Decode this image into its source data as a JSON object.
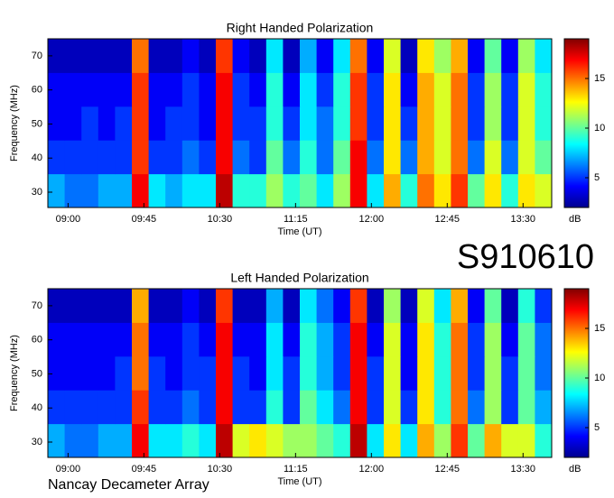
{
  "id": "S910610",
  "footer": "Nancay Decameter Array",
  "chart_data": [
    {
      "type": "heatmap",
      "title": "Right Handed Polarization",
      "xlabel": "Time (UT)",
      "ylabel": "Frequency (MHz)",
      "xlim": [
        528,
        827
      ],
      "xticks": [
        {
          "value": 540,
          "label": "09:00"
        },
        {
          "value": 585,
          "label": "09:45"
        },
        {
          "value": 630,
          "label": "10:30"
        },
        {
          "value": 675,
          "label": "11:15"
        },
        {
          "value": 720,
          "label": "12:00"
        },
        {
          "value": 765,
          "label": "12:45"
        },
        {
          "value": 810,
          "label": "13:30"
        }
      ],
      "ylim": [
        25.5,
        75
      ],
      "yticks": [
        30,
        40,
        50,
        60,
        70
      ],
      "zlim": [
        2,
        19
      ],
      "zticks": [
        5,
        10,
        15
      ],
      "zlabel": "dB",
      "z": [
        [
          7,
          6,
          6,
          7,
          7,
          17,
          8,
          7,
          8,
          8,
          18,
          9,
          9,
          11,
          9,
          10,
          8,
          11,
          17,
          8,
          14,
          9,
          15,
          13,
          16,
          10,
          13,
          9,
          13,
          12
        ],
        [
          5,
          5,
          5,
          5,
          5,
          16,
          5,
          5,
          6,
          5,
          17,
          6,
          5,
          10,
          6,
          9,
          6,
          10,
          17,
          6,
          13,
          6,
          14,
          12,
          15,
          6,
          12,
          6,
          12,
          10
        ],
        [
          4,
          4,
          5,
          4,
          5,
          16,
          4,
          5,
          5,
          4,
          17,
          5,
          5,
          9,
          5,
          8,
          6,
          9,
          16,
          5,
          13,
          5,
          14,
          12,
          15,
          5,
          11,
          5,
          12,
          9
        ],
        [
          4,
          4,
          4,
          4,
          4,
          16,
          4,
          4,
          5,
          4,
          17,
          5,
          4,
          9,
          4,
          8,
          5,
          9,
          16,
          5,
          13,
          4,
          14,
          12,
          15,
          5,
          11,
          5,
          12,
          9
        ],
        [
          3,
          3,
          3,
          3,
          3,
          15,
          3,
          3,
          4,
          3,
          16,
          4,
          3,
          8,
          3,
          7,
          4,
          8,
          15,
          4,
          12,
          3,
          13,
          11,
          14,
          4,
          10,
          4,
          11,
          8
        ]
      ]
    },
    {
      "type": "heatmap",
      "title": "Left Handed Polarization",
      "xlabel": "Time (UT)",
      "ylabel": "Frequency (MHz)",
      "xlim": [
        528,
        827
      ],
      "xticks": [
        {
          "value": 540,
          "label": "09:00"
        },
        {
          "value": 585,
          "label": "09:45"
        },
        {
          "value": 630,
          "label": "10:30"
        },
        {
          "value": 675,
          "label": "11:15"
        },
        {
          "value": 720,
          "label": "12:00"
        },
        {
          "value": 765,
          "label": "12:45"
        },
        {
          "value": 810,
          "label": "13:30"
        }
      ],
      "ylim": [
        25.5,
        75
      ],
      "yticks": [
        30,
        40,
        50,
        60,
        70
      ],
      "zlim": [
        2,
        19
      ],
      "zticks": [
        5,
        10,
        15
      ],
      "zlabel": "dB",
      "z": [
        [
          7,
          6,
          6,
          7,
          7,
          17,
          8,
          8,
          9,
          8,
          18,
          12,
          13,
          12,
          11,
          11,
          10,
          9,
          18,
          8,
          13,
          8,
          14,
          11,
          16,
          10,
          14,
          12,
          12,
          9
        ],
        [
          5,
          5,
          5,
          5,
          5,
          16,
          5,
          5,
          6,
          5,
          17,
          5,
          5,
          9,
          5,
          10,
          8,
          6,
          17,
          5,
          12,
          5,
          13,
          9,
          15,
          6,
          11,
          5,
          10,
          7
        ],
        [
          4,
          4,
          4,
          4,
          5,
          15,
          5,
          4,
          5,
          5,
          17,
          5,
          4,
          8,
          5,
          9,
          7,
          5,
          17,
          5,
          12,
          4,
          13,
          9,
          15,
          5,
          11,
          5,
          10,
          6
        ],
        [
          4,
          4,
          4,
          4,
          4,
          15,
          4,
          4,
          5,
          4,
          17,
          4,
          4,
          8,
          4,
          9,
          7,
          5,
          17,
          4,
          12,
          4,
          13,
          9,
          15,
          5,
          11,
          4,
          10,
          6
        ],
        [
          3,
          3,
          3,
          3,
          3,
          14,
          3,
          3,
          4,
          3,
          16,
          3,
          3,
          7,
          3,
          8,
          6,
          4,
          16,
          3,
          11,
          3,
          12,
          8,
          14,
          4,
          10,
          3,
          9,
          5
        ]
      ]
    }
  ]
}
